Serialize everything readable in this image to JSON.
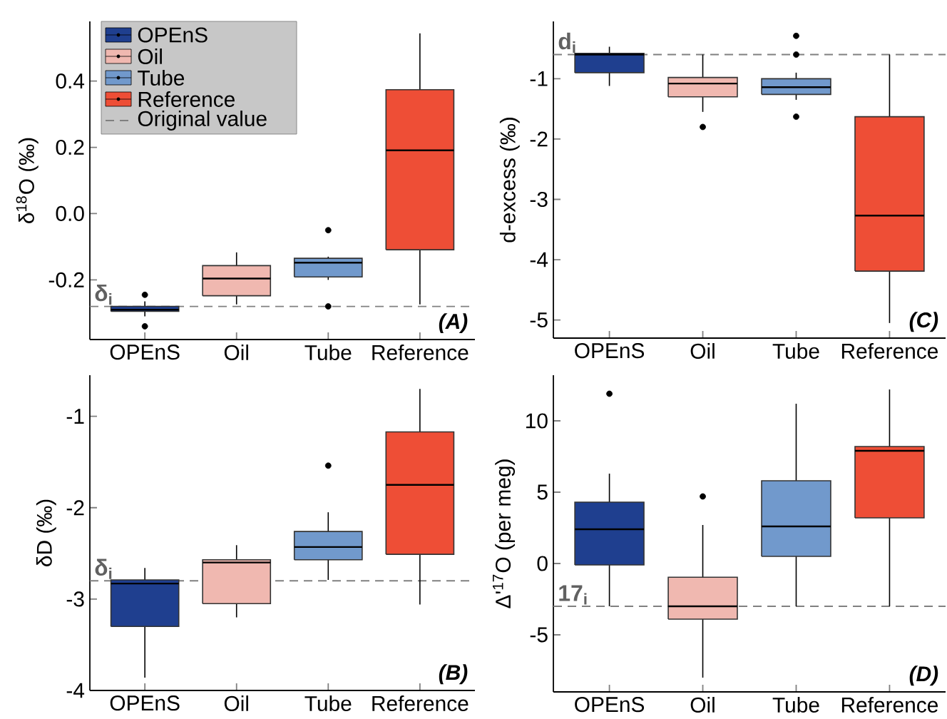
{
  "chart_data": [
    {
      "type": "box",
      "categories": [
        "OPEnS",
        "Oil",
        "Tube",
        "Reference"
      ],
      "colors": [
        "#1f3f8f",
        "#f0b8b0",
        "#7199cc",
        "#ee4e36"
      ],
      "ylabel": "δ$^{18}$O (‰)",
      "ylim": [
        -0.38,
        0.58
      ],
      "yticks": [
        -0.2,
        {
          "value": 0,
          "label": "0.0"
        },
        0.2,
        0.4
      ],
      "boxes": [
        {
          "low": -0.31,
          "q1": -0.295,
          "median": -0.29,
          "q3": -0.28,
          "high": -0.265,
          "outliers": [
            -0.245,
            -0.34
          ]
        },
        {
          "low": -0.274,
          "q1": -0.248,
          "median": -0.196,
          "q3": -0.157,
          "high": -0.117
        },
        {
          "low": -0.2,
          "q1": -0.191,
          "median": -0.148,
          "q3": -0.135,
          "high": -0.13,
          "outliers": [
            -0.05,
            -0.28
          ]
        },
        {
          "low": -0.274,
          "q1": -0.109,
          "median": 0.191,
          "q3": 0.374,
          "high": 0.544
        }
      ],
      "ref_lines": [
        {
          "axis": "y",
          "value": -0.28,
          "label": "Original value",
          "color": "#808080",
          "line_style": "dashed"
        }
      ],
      "annotations": [
        "(A)",
        {
          "text": "δ$_{i}$",
          "y": -0.28
        }
      ],
      "legend": "top left"
    },
    {
      "type": "box",
      "categories": [
        "OPEnS",
        "Oil",
        "Tube",
        "Reference"
      ],
      "colors": [
        "#1f3f8f",
        "#f0b8b0",
        "#7199cc",
        "#ee4e36"
      ],
      "ylabel": "d-excess (‰)",
      "ylim": [
        -5.3,
        -0.05
      ],
      "yticks": [
        -5,
        -4,
        -3,
        -2,
        -1
      ],
      "boxes": [
        {
          "low": -1.12,
          "q1": -0.9,
          "median": -0.6,
          "q3": -0.58,
          "high": -0.47
        },
        {
          "low": -1.55,
          "q1": -1.3,
          "median": -1.08,
          "q3": -0.98,
          "high": -0.6,
          "outliers": [
            -1.8
          ]
        },
        {
          "low": -1.35,
          "q1": -1.26,
          "median": -1.14,
          "q3": -1.0,
          "high": -0.9,
          "outliers": [
            -0.29,
            -0.6,
            -1.63
          ]
        },
        {
          "low": -5.05,
          "q1": -4.19,
          "median": -3.27,
          "q3": -1.63,
          "high": -0.6
        }
      ],
      "ref_lines": [
        {
          "axis": "y",
          "value": -0.6,
          "color": "#808080",
          "line_style": "dashed"
        }
      ],
      "annotations": [
        "(C)",
        {
          "text": "d$_{i}$",
          "y": -0.6
        }
      ]
    },
    {
      "type": "box",
      "categories": [
        "OPEnS",
        "Oil",
        "Tube",
        "Reference"
      ],
      "colors": [
        "#1f3f8f",
        "#f0b8b0",
        "#7199cc",
        "#ee4e36"
      ],
      "ylabel": "δD (‰)",
      "ylim": [
        -4,
        -0.55
      ],
      "yticks": [
        -4,
        -3,
        -2,
        -1
      ],
      "boxes": [
        {
          "low": -3.86,
          "q1": -3.3,
          "median": -2.83,
          "q3": -2.79,
          "high": -2.66
        },
        {
          "low": -3.2,
          "q1": -3.05,
          "median": -2.6,
          "q3": -2.57,
          "high": -2.41
        },
        {
          "low": -2.79,
          "q1": -2.57,
          "median": -2.43,
          "q3": -2.26,
          "high": -2.05,
          "outliers": [
            -1.54
          ]
        },
        {
          "low": -3.06,
          "q1": -2.51,
          "median": -1.75,
          "q3": -1.17,
          "high": -0.7
        }
      ],
      "ref_lines": [
        {
          "axis": "y",
          "value": -2.8,
          "color": "#808080",
          "line_style": "dashed"
        }
      ],
      "annotations": [
        "(B)",
        {
          "text": "δ$_{i}$",
          "y": -2.8
        }
      ]
    },
    {
      "type": "box",
      "categories": [
        "OPEnS",
        "Oil",
        "Tube",
        "Reference"
      ],
      "colors": [
        "#1f3f8f",
        "#f0b8b0",
        "#7199cc",
        "#ee4e36"
      ],
      "ylabel": "Δ'$^{17}$O (per meg)",
      "ylim": [
        -9,
        13.2
      ],
      "yticks": [
        -5,
        0,
        5,
        10
      ],
      "boxes": [
        {
          "low": -3,
          "q1": -0.1,
          "median": 2.4,
          "q3": 4.3,
          "high": 6.3,
          "outliers": [
            11.9
          ]
        },
        {
          "low": -8,
          "q1": -3.9,
          "median": -3,
          "q3": -0.96,
          "high": 2.7,
          "outliers": [
            4.7
          ]
        },
        {
          "low": -3,
          "q1": 0.5,
          "median": 2.6,
          "q3": 5.8,
          "high": 11.2
        },
        {
          "low": -3,
          "q1": 3.2,
          "median": 7.9,
          "q3": 8.2,
          "high": 12.2
        }
      ],
      "ref_lines": [
        {
          "axis": "y",
          "value": -3,
          "color": "#808080",
          "line_style": "dashed"
        }
      ],
      "annotations": [
        "(D)",
        {
          "text": "17$_{i}$",
          "y": -3
        }
      ]
    }
  ]
}
